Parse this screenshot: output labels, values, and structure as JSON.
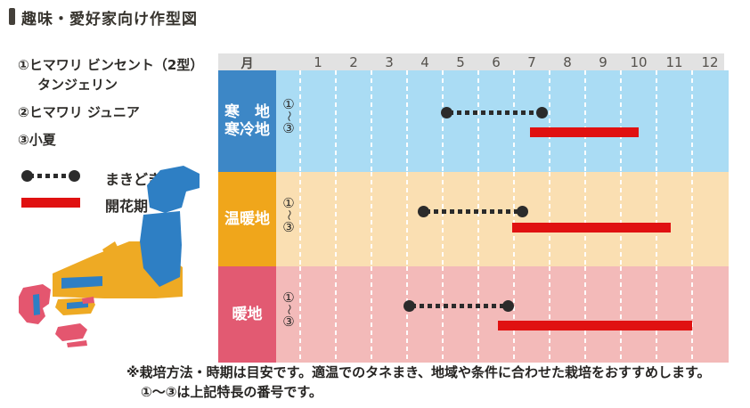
{
  "page": {
    "title": "趣味・愛好家向け作型図",
    "footnote_line1": "※栽培方法・時期は目安です。適温でのタネまき、地域や条件に合わせた栽培をおすすめします。",
    "footnote_line2": "①～③は上記特長の番号です。"
  },
  "varieties": {
    "item1_line1": "①ヒマワリ ビンセント（2型）",
    "item1_line2": "タンジェリン",
    "item2": "②ヒマワリ ジュニア",
    "item3": "③小夏"
  },
  "legend": {
    "sowing_label": "まきどき",
    "flowering_label": "開花期"
  },
  "colors": {
    "sowing_dot": "#2b2b2b",
    "flowering_bar": "#e01111",
    "cold_region": "#3d87c6",
    "cold_region_light": "#aadcf4",
    "temperate_region": "#f0a61b",
    "temperate_region_light": "#fadfb2",
    "warm_region": "#e25a72",
    "warm_region_light": "#f3bab9",
    "map_blue": "#2e7fc4",
    "map_yellow": "#eeaa24",
    "map_pink": "#e4566f",
    "header_band": "#e2e2e2"
  },
  "chart_data": {
    "type": "gantt",
    "month_header_label": "月",
    "months": [
      "1",
      "2",
      "3",
      "4",
      "5",
      "6",
      "7",
      "8",
      "9",
      "10",
      "11",
      "12"
    ],
    "x_axis": "month of year 1-12; decimal = fraction through that month",
    "marker": {
      "top": "①",
      "tilde": "〜",
      "bottom": "③"
    },
    "series_meaning": {
      "sowing": "まきどき (dotted line)",
      "flowering": "開花期 (red bar)"
    },
    "rows": [
      {
        "region": "寒地・寒冷地",
        "region_lines": [
          "寒　地",
          "寒冷地"
        ],
        "sowing": [
          5.1,
          7.8
        ],
        "flowering": [
          7.45,
          10.5
        ],
        "label_color": "#3d87c6",
        "body_color": "#aadcf4"
      },
      {
        "region": "温暖地",
        "region_lines": [
          "温暖地"
        ],
        "sowing": [
          4.45,
          7.25
        ],
        "flowering": [
          6.95,
          11.4
        ],
        "label_color": "#f0a61b",
        "body_color": "#fadfb2"
      },
      {
        "region": "暖地",
        "region_lines": [
          "暖地"
        ],
        "sowing": [
          4.05,
          6.85
        ],
        "flowering": [
          6.55,
          12.0
        ],
        "label_color": "#e25a72",
        "body_color": "#f3bab9"
      }
    ]
  }
}
